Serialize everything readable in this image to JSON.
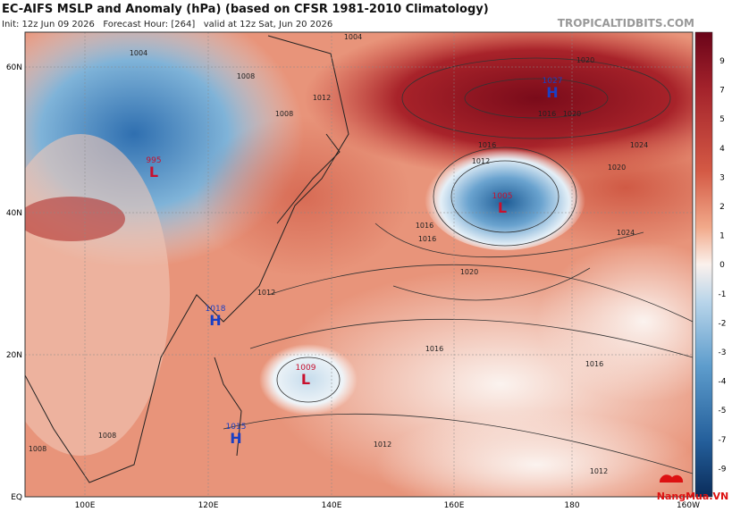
{
  "header": {
    "title": "EC-AIFS MSLP and Anomaly (hPa) (based on CFSR 1981-2010 Climatology)",
    "subtitle": "Init: 12z Jun 09 2026   Forecast Hour: [264]   valid at 12z Sat, Jun 20 2026",
    "site": "TROPICALTIDBITS.COM"
  },
  "map": {
    "lat_labels": [
      "60N",
      "40N",
      "20N",
      "EQ"
    ],
    "lon_labels": [
      "100E",
      "120E",
      "140E",
      "160E",
      "180",
      "160W"
    ],
    "centers": [
      {
        "type": "H",
        "pressure": "1027"
      },
      {
        "type": "L",
        "pressure": "995"
      },
      {
        "type": "L",
        "pressure": "1005"
      },
      {
        "type": "H",
        "pressure": "1018"
      },
      {
        "type": "L",
        "pressure": "1009"
      },
      {
        "type": "H",
        "pressure": "1015"
      }
    ],
    "contour_labels": [
      "1004",
      "1004",
      "1008",
      "1008",
      "1012",
      "1016",
      "1020",
      "1024",
      "1020",
      "1012",
      "1016",
      "1016",
      "1020",
      "1024",
      "1012",
      "1016",
      "1016",
      "1012",
      "1012",
      "1020",
      "1016",
      "1008",
      "1008"
    ]
  },
  "colorbar": {
    "labels": [
      9,
      7,
      5,
      4,
      3,
      2,
      1,
      0,
      -1,
      -2,
      -3,
      -4,
      -5,
      -7,
      -9
    ]
  },
  "watermark": "NangMua.VN"
}
